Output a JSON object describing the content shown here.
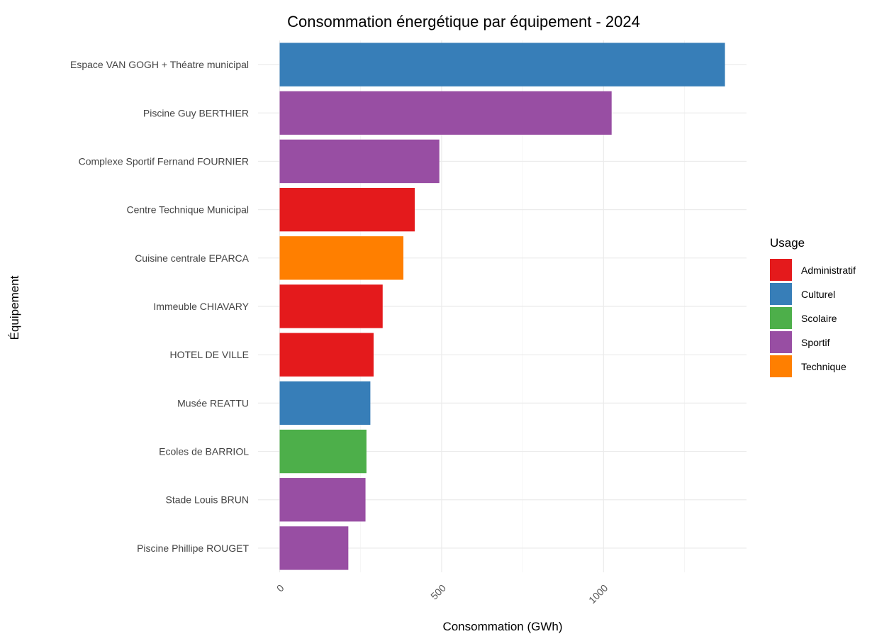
{
  "chart_data": {
    "type": "bar",
    "orientation": "horizontal",
    "title": "Consommation énergétique par équipement - 2024",
    "xlabel": "Consommation (GWh)",
    "ylabel": "Équipement",
    "xlim": [
      0,
      1450
    ],
    "xticks": [
      0,
      500,
      1000
    ],
    "xtick_labels": [
      "0",
      "500",
      "1000"
    ],
    "xtick_rotation_deg": 45,
    "grid": true,
    "legend": {
      "title": "Usage",
      "position": "right"
    },
    "palette": {
      "Administratif": "#e41a1c",
      "Culturel": "#377eb8",
      "Scolaire": "#4daf4a",
      "Sportif": "#984ea3",
      "Technique": "#ff7f00"
    },
    "legend_order": [
      "Administratif",
      "Culturel",
      "Scolaire",
      "Sportif",
      "Technique"
    ],
    "bars": [
      {
        "category": "Espace VAN GOGH + Théatre municipal",
        "value": 1375,
        "usage": "Culturel"
      },
      {
        "category": "Piscine Guy BERTHIER",
        "value": 1025,
        "usage": "Sportif"
      },
      {
        "category": "Complexe Sportif Fernand FOURNIER",
        "value": 493,
        "usage": "Sportif"
      },
      {
        "category": "Centre Technique Municipal",
        "value": 417,
        "usage": "Administratif"
      },
      {
        "category": "Cuisine centrale EPARCA",
        "value": 382,
        "usage": "Technique"
      },
      {
        "category": "Immeuble CHIAVARY",
        "value": 318,
        "usage": "Administratif"
      },
      {
        "category": "HOTEL DE VILLE",
        "value": 290,
        "usage": "Administratif"
      },
      {
        "category": "Musée REATTU",
        "value": 280,
        "usage": "Culturel"
      },
      {
        "category": "Ecoles de BARRIOL",
        "value": 268,
        "usage": "Scolaire"
      },
      {
        "category": "Stade Louis BRUN",
        "value": 265,
        "usage": "Sportif"
      },
      {
        "category": "Piscine Phillipe ROUGET",
        "value": 212,
        "usage": "Sportif"
      }
    ]
  }
}
